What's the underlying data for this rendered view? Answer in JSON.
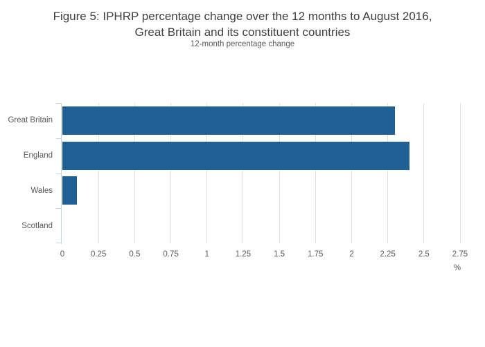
{
  "header": {
    "title_line1": "Figure 5: IPHRP percentage change over the 12 months to August 2016,",
    "title_line2": "Great Britain and its constituent countries",
    "subtitle": "12-month percentage change"
  },
  "colors": {
    "bar": "#206095",
    "gridline": "#e1e1e1",
    "axis_line": "#c6d3e1",
    "label_text": "#595959",
    "title_text": "#404042"
  },
  "chart_data": {
    "type": "bar",
    "orientation": "horizontal",
    "title": "Figure 5: IPHRP percentage change over the 12 months to August 2016, Great Britain and its constituent countries",
    "subtitle": "12-month percentage change",
    "categories": [
      "Great Britain",
      "England",
      "Wales",
      "Scotland"
    ],
    "values": [
      2.3,
      2.4,
      0.1,
      0.0
    ],
    "series_name": "12-month percentage change",
    "xlabel": "%",
    "ylabel": "",
    "xlim": [
      0,
      2.75
    ],
    "xticks": [
      0,
      0.25,
      0.5,
      0.75,
      1,
      1.25,
      1.5,
      1.75,
      2,
      2.25,
      2.5,
      2.75
    ],
    "xtick_labels": [
      "0",
      "0.25",
      "0.5",
      "0.75",
      "1",
      "1.25",
      "1.5",
      "1.75",
      "2",
      "2.25",
      "2.5",
      "2.75"
    ],
    "unit_label": "%",
    "grid": true,
    "legend": "none",
    "bar_color": "#206095"
  }
}
